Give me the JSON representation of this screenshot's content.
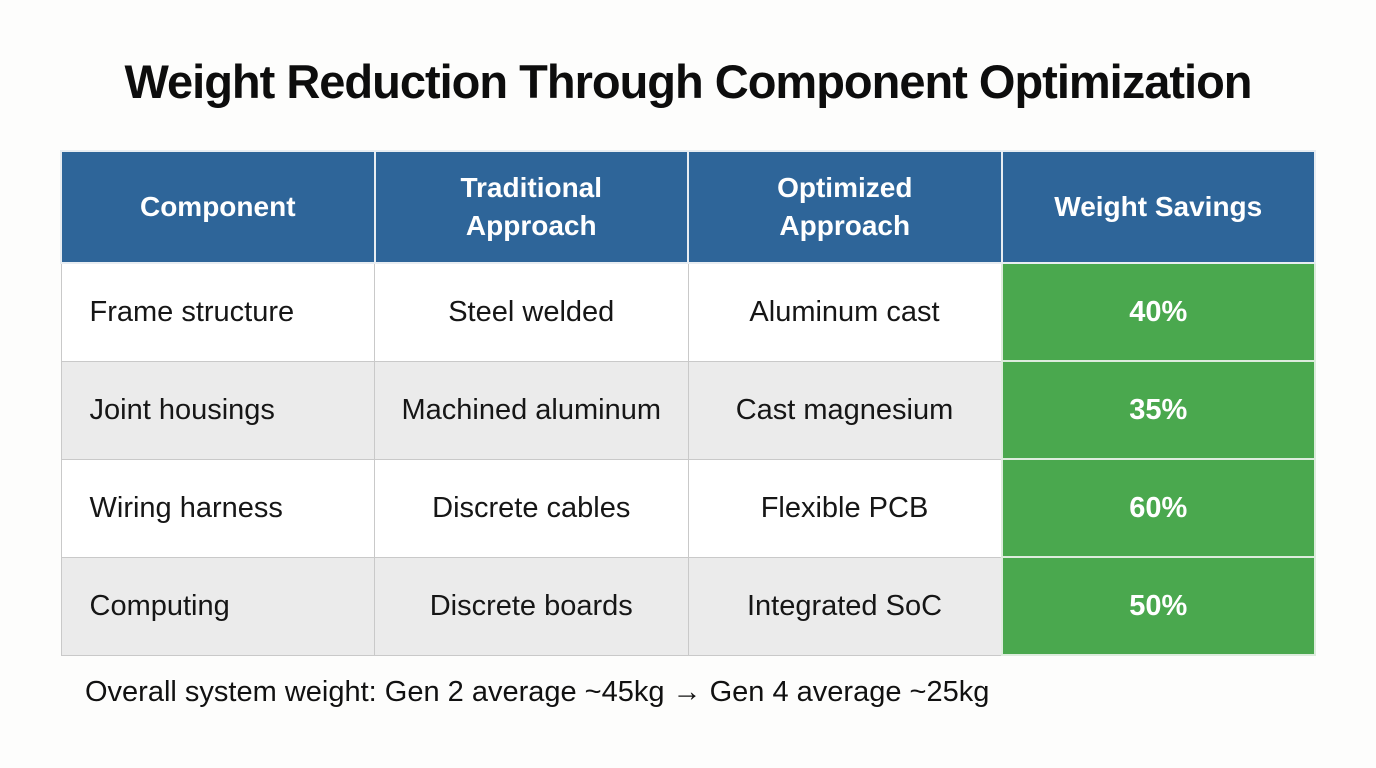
{
  "title": "Weight Reduction Through Component Optimization",
  "chart_data": {
    "type": "table",
    "title": "Weight Reduction Through Component Optimization",
    "columns": [
      "Component",
      "Traditional Approach",
      "Optimized Approach",
      "Weight Savings"
    ],
    "rows": [
      [
        "Frame structure",
        "Steel welded",
        "Aluminum cast",
        "40%"
      ],
      [
        "Joint housings",
        "Machined aluminum",
        "Cast magnesium",
        "35%"
      ],
      [
        "Wiring harness",
        "Discrete cables",
        "Flexible PCB",
        "60%"
      ],
      [
        "Computing",
        "Discrete boards",
        "Integrated SoC",
        "50%"
      ]
    ],
    "savings_values_percent": [
      40,
      35,
      60,
      50
    ],
    "annotation": "Overall system weight: Gen 2 average ~45kg → Gen 4 average ~25kg"
  },
  "colors": {
    "header_bg": "#2e6599",
    "header_text": "#ffffff",
    "savings_bg": "#4aa84e",
    "savings_text": "#ffffff",
    "row_alt_bg": "#ebebeb",
    "row_bg": "#ffffff",
    "background": "#fdfdfc",
    "body_text": "#161616"
  },
  "footnote": "Overall system weight: Gen 2 average ~45kg → Gen 4 average ~25kg"
}
